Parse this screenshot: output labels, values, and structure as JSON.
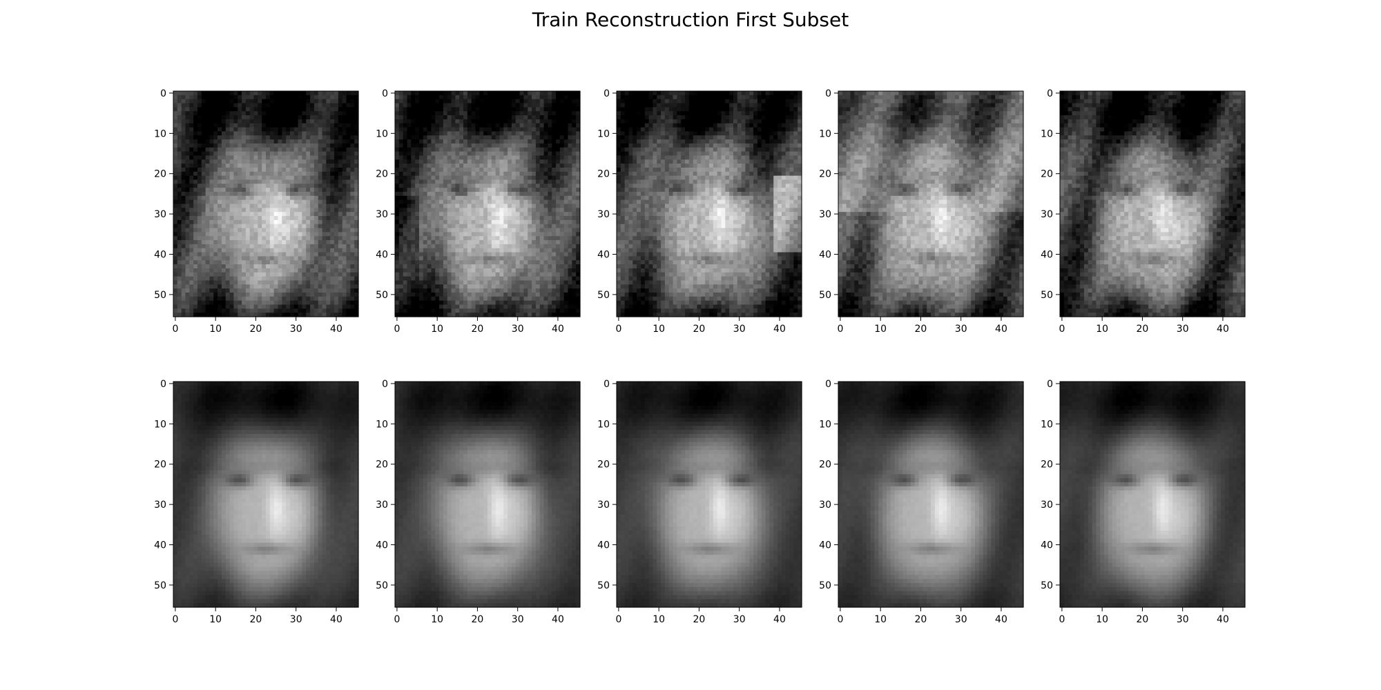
{
  "figure": {
    "title": "Train Reconstruction First Subset"
  },
  "chart_data": [
    {
      "type": "heatmap",
      "row": "original",
      "image_index": 1,
      "xticks": [
        "0",
        "10",
        "20",
        "30",
        "40"
      ],
      "yticks": [
        "0",
        "10",
        "20",
        "30",
        "40",
        "50"
      ],
      "xlim": [
        -0.5,
        45.5
      ],
      "ylim": [
        55.5,
        -0.5
      ],
      "colormap": "gray",
      "grid": false
    },
    {
      "type": "heatmap",
      "row": "original",
      "image_index": 2,
      "xticks": [
        "0",
        "10",
        "20",
        "30",
        "40"
      ],
      "yticks": [
        "0",
        "10",
        "20",
        "30",
        "40",
        "50"
      ],
      "xlim": [
        -0.5,
        45.5
      ],
      "ylim": [
        55.5,
        -0.5
      ],
      "colormap": "gray",
      "grid": false
    },
    {
      "type": "heatmap",
      "row": "original",
      "image_index": 3,
      "xticks": [
        "0",
        "10",
        "20",
        "30",
        "40"
      ],
      "yticks": [
        "0",
        "10",
        "20",
        "30",
        "40",
        "50"
      ],
      "xlim": [
        -0.5,
        45.5
      ],
      "ylim": [
        55.5,
        -0.5
      ],
      "colormap": "gray",
      "grid": false
    },
    {
      "type": "heatmap",
      "row": "original",
      "image_index": 4,
      "xticks": [
        "0",
        "10",
        "20",
        "30",
        "40"
      ],
      "yticks": [
        "0",
        "10",
        "20",
        "30",
        "40",
        "50"
      ],
      "xlim": [
        -0.5,
        45.5
      ],
      "ylim": [
        55.5,
        -0.5
      ],
      "colormap": "gray",
      "grid": false
    },
    {
      "type": "heatmap",
      "row": "original",
      "image_index": 5,
      "xticks": [
        "0",
        "10",
        "20",
        "30",
        "40"
      ],
      "yticks": [
        "0",
        "10",
        "20",
        "30",
        "40",
        "50"
      ],
      "xlim": [
        -0.5,
        45.5
      ],
      "ylim": [
        55.5,
        -0.5
      ],
      "colormap": "gray",
      "grid": false
    },
    {
      "type": "heatmap",
      "row": "reconstruction",
      "image_index": 1,
      "xticks": [
        "0",
        "10",
        "20",
        "30",
        "40"
      ],
      "yticks": [
        "0",
        "10",
        "20",
        "30",
        "40",
        "50"
      ],
      "xlim": [
        -0.5,
        45.5
      ],
      "ylim": [
        55.5,
        -0.5
      ],
      "colormap": "gray",
      "grid": false
    },
    {
      "type": "heatmap",
      "row": "reconstruction",
      "image_index": 2,
      "xticks": [
        "0",
        "10",
        "20",
        "30",
        "40"
      ],
      "yticks": [
        "0",
        "10",
        "20",
        "30",
        "40",
        "50"
      ],
      "xlim": [
        -0.5,
        45.5
      ],
      "ylim": [
        55.5,
        -0.5
      ],
      "colormap": "gray",
      "grid": false
    },
    {
      "type": "heatmap",
      "row": "reconstruction",
      "image_index": 3,
      "xticks": [
        "0",
        "10",
        "20",
        "30",
        "40"
      ],
      "yticks": [
        "0",
        "10",
        "20",
        "30",
        "40",
        "50"
      ],
      "xlim": [
        -0.5,
        45.5
      ],
      "ylim": [
        55.5,
        -0.5
      ],
      "colormap": "gray",
      "grid": false
    },
    {
      "type": "heatmap",
      "row": "reconstruction",
      "image_index": 4,
      "xticks": [
        "0",
        "10",
        "20",
        "30",
        "40"
      ],
      "yticks": [
        "0",
        "10",
        "20",
        "30",
        "40",
        "50"
      ],
      "xlim": [
        -0.5,
        45.5
      ],
      "ylim": [
        55.5,
        -0.5
      ],
      "colormap": "gray",
      "grid": false
    },
    {
      "type": "heatmap",
      "row": "reconstruction",
      "image_index": 5,
      "xticks": [
        "0",
        "10",
        "20",
        "30",
        "40"
      ],
      "yticks": [
        "0",
        "10",
        "20",
        "30",
        "40",
        "50"
      ],
      "xlim": [
        -0.5,
        45.5
      ],
      "ylim": [
        55.5,
        -0.5
      ],
      "colormap": "gray",
      "grid": false
    }
  ]
}
